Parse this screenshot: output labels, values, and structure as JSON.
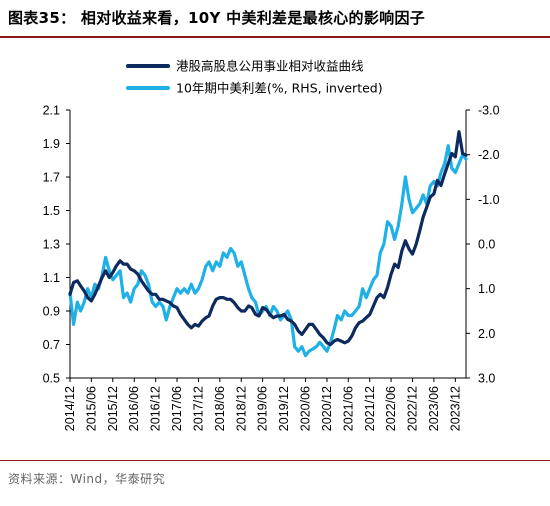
{
  "header": {
    "title": "图表35：  相对收益来看，10Y 中美利差是最核心的影响因子"
  },
  "footer": {
    "source": "资料来源：Wind，华泰研究"
  },
  "chart_data": {
    "type": "line",
    "title": "",
    "xlabel": "",
    "ylabel_left": "",
    "ylabel_right": "",
    "x_tick_labels": [
      "2014/12",
      "2015/06",
      "2015/12",
      "2016/06",
      "2016/12",
      "2017/06",
      "2017/12",
      "2018/06",
      "2018/12",
      "2019/06",
      "2019/12",
      "2020/06",
      "2020/12",
      "2021/06",
      "2021/12",
      "2022/06",
      "2022/12",
      "2023/06",
      "2023/12"
    ],
    "x_range": [
      "2014/12",
      "2024/03"
    ],
    "y_left": {
      "range": [
        0.5,
        2.1
      ],
      "ticks": [
        "0.5",
        "0.7",
        "0.9",
        "1.1",
        "1.3",
        "1.5",
        "1.7",
        "1.9",
        "2.1"
      ]
    },
    "y_right": {
      "range": [
        -3.0,
        3.0
      ],
      "inverted": true,
      "ticks": [
        "-3.0",
        "-2.0",
        "-1.0",
        "0.0",
        "1.0",
        "2.0",
        "3.0"
      ]
    },
    "grid": false,
    "legend_position": "top-center",
    "series": [
      {
        "name": "港股高股息公用事业相对收益曲线",
        "axis": "left",
        "color": "#0c2a5e",
        "points": [
          [
            "2014/12/01",
            1.0
          ],
          [
            "2015/01/01",
            1.07
          ],
          [
            "2015/02/01",
            1.08
          ],
          [
            "2015/03/01",
            1.05
          ],
          [
            "2015/04/01",
            1.02
          ],
          [
            "2015/05/01",
            0.98
          ],
          [
            "2015/06/01",
            0.96
          ],
          [
            "2015/07/01",
            1.0
          ],
          [
            "2015/08/01",
            1.05
          ],
          [
            "2015/09/01",
            1.1
          ],
          [
            "2015/10/01",
            1.14
          ],
          [
            "2015/11/01",
            1.1
          ],
          [
            "2015/12/01",
            1.13
          ],
          [
            "2016/01/01",
            1.17
          ],
          [
            "2016/02/01",
            1.2
          ],
          [
            "2016/03/01",
            1.18
          ],
          [
            "2016/04/01",
            1.18
          ],
          [
            "2016/05/01",
            1.15
          ],
          [
            "2016/06/01",
            1.14
          ],
          [
            "2016/07/01",
            1.12
          ],
          [
            "2016/08/01",
            1.08
          ],
          [
            "2016/09/01",
            1.05
          ],
          [
            "2016/10/01",
            1.02
          ],
          [
            "2016/11/01",
            1.0
          ],
          [
            "2016/12/01",
            1.0
          ],
          [
            "2017/01/01",
            0.97
          ],
          [
            "2017/02/01",
            0.97
          ],
          [
            "2017/03/01",
            0.96
          ],
          [
            "2017/04/01",
            0.95
          ],
          [
            "2017/05/01",
            0.93
          ],
          [
            "2017/06/01",
            0.92
          ],
          [
            "2017/07/01",
            0.88
          ],
          [
            "2017/08/01",
            0.85
          ],
          [
            "2017/09/01",
            0.82
          ],
          [
            "2017/10/01",
            0.8
          ],
          [
            "2017/11/01",
            0.82
          ],
          [
            "2017/12/01",
            0.81
          ],
          [
            "2018/01/01",
            0.84
          ],
          [
            "2018/02/01",
            0.86
          ],
          [
            "2018/03/01",
            0.87
          ],
          [
            "2018/04/01",
            0.93
          ],
          [
            "2018/05/01",
            0.97
          ],
          [
            "2018/06/01",
            0.98
          ],
          [
            "2018/07/01",
            0.98
          ],
          [
            "2018/08/01",
            0.97
          ],
          [
            "2018/09/01",
            0.97
          ],
          [
            "2018/10/01",
            0.95
          ],
          [
            "2018/11/01",
            0.92
          ],
          [
            "2018/12/01",
            0.9
          ],
          [
            "2019/01/01",
            0.9
          ],
          [
            "2019/02/01",
            0.93
          ],
          [
            "2019/03/01",
            0.92
          ],
          [
            "2019/04/01",
            0.88
          ],
          [
            "2019/05/01",
            0.87
          ],
          [
            "2019/06/01",
            0.92
          ],
          [
            "2019/07/01",
            0.91
          ],
          [
            "2019/08/01",
            0.88
          ],
          [
            "2019/09/01",
            0.86
          ],
          [
            "2019/10/01",
            0.87
          ],
          [
            "2019/11/01",
            0.87
          ],
          [
            "2019/12/01",
            0.88
          ],
          [
            "2020/01/01",
            0.85
          ],
          [
            "2020/02/01",
            0.84
          ],
          [
            "2020/03/01",
            0.82
          ],
          [
            "2020/04/01",
            0.78
          ],
          [
            "2020/05/01",
            0.76
          ],
          [
            "2020/06/01",
            0.79
          ],
          [
            "2020/07/01",
            0.82
          ],
          [
            "2020/08/01",
            0.82
          ],
          [
            "2020/09/01",
            0.79
          ],
          [
            "2020/10/01",
            0.76
          ],
          [
            "2020/11/01",
            0.74
          ],
          [
            "2020/12/01",
            0.71
          ],
          [
            "2021/01/01",
            0.7
          ],
          [
            "2021/02/01",
            0.72
          ],
          [
            "2021/03/01",
            0.73
          ],
          [
            "2021/04/01",
            0.72
          ],
          [
            "2021/05/01",
            0.71
          ],
          [
            "2021/06/01",
            0.72
          ],
          [
            "2021/07/01",
            0.75
          ],
          [
            "2021/08/01",
            0.8
          ],
          [
            "2021/09/01",
            0.83
          ],
          [
            "2021/10/01",
            0.84
          ],
          [
            "2021/11/01",
            0.86
          ],
          [
            "2021/12/01",
            0.88
          ],
          [
            "2022/01/01",
            0.93
          ],
          [
            "2022/02/01",
            0.98
          ],
          [
            "2022/03/01",
            1.0
          ],
          [
            "2022/04/01",
            0.98
          ],
          [
            "2022/05/01",
            1.04
          ],
          [
            "2022/06/01",
            1.12
          ],
          [
            "2022/07/01",
            1.18
          ],
          [
            "2022/08/01",
            1.16
          ],
          [
            "2022/09/01",
            1.26
          ],
          [
            "2022/10/01",
            1.32
          ],
          [
            "2022/11/01",
            1.27
          ],
          [
            "2022/12/01",
            1.24
          ],
          [
            "2023/01/01",
            1.3
          ],
          [
            "2023/02/01",
            1.38
          ],
          [
            "2023/03/01",
            1.46
          ],
          [
            "2023/04/01",
            1.52
          ],
          [
            "2023/05/01",
            1.58
          ],
          [
            "2023/06/01",
            1.6
          ],
          [
            "2023/07/01",
            1.68
          ],
          [
            "2023/08/01",
            1.65
          ],
          [
            "2023/09/01",
            1.72
          ],
          [
            "2023/10/01",
            1.78
          ],
          [
            "2023/11/01",
            1.84
          ],
          [
            "2023/12/01",
            1.82
          ],
          [
            "2024/01/01",
            1.97
          ],
          [
            "2024/02/01",
            1.84
          ],
          [
            "2024/03/01",
            1.83
          ]
        ]
      },
      {
        "name": "10年期中美利差(%, RHS, inverted)",
        "axis": "right",
        "color": "#1eb0e6",
        "points": [
          [
            "2014/12/01",
            1.1
          ],
          [
            "2015/01/01",
            1.8
          ],
          [
            "2015/02/01",
            1.3
          ],
          [
            "2015/03/01",
            1.5
          ],
          [
            "2015/04/01",
            1.3
          ],
          [
            "2015/05/01",
            1.0
          ],
          [
            "2015/06/01",
            1.2
          ],
          [
            "2015/07/01",
            0.9
          ],
          [
            "2015/08/01",
            1.0
          ],
          [
            "2015/09/01",
            0.7
          ],
          [
            "2015/10/01",
            0.3
          ],
          [
            "2015/11/01",
            0.6
          ],
          [
            "2015/12/01",
            0.8
          ],
          [
            "2016/01/01",
            0.7
          ],
          [
            "2016/02/01",
            0.6
          ],
          [
            "2016/03/01",
            1.2
          ],
          [
            "2016/04/01",
            1.1
          ],
          [
            "2016/05/01",
            1.3
          ],
          [
            "2016/06/01",
            1.0
          ],
          [
            "2016/07/01",
            0.9
          ],
          [
            "2016/08/01",
            0.6
          ],
          [
            "2016/09/01",
            0.7
          ],
          [
            "2016/10/01",
            0.9
          ],
          [
            "2016/11/01",
            1.3
          ],
          [
            "2016/12/01",
            1.4
          ],
          [
            "2017/01/01",
            1.3
          ],
          [
            "2017/02/01",
            1.4
          ],
          [
            "2017/03/01",
            1.7
          ],
          [
            "2017/04/01",
            1.4
          ],
          [
            "2017/05/01",
            1.2
          ],
          [
            "2017/06/01",
            1.0
          ],
          [
            "2017/07/01",
            1.1
          ],
          [
            "2017/08/01",
            1.0
          ],
          [
            "2017/09/01",
            1.1
          ],
          [
            "2017/10/01",
            0.9
          ],
          [
            "2017/11/01",
            1.1
          ],
          [
            "2017/12/01",
            1.0
          ],
          [
            "2018/01/01",
            0.8
          ],
          [
            "2018/02/01",
            0.5
          ],
          [
            "2018/03/01",
            0.4
          ],
          [
            "2018/04/01",
            0.6
          ],
          [
            "2018/05/01",
            0.4
          ],
          [
            "2018/06/01",
            0.5
          ],
          [
            "2018/07/01",
            0.2
          ],
          [
            "2018/08/01",
            0.3
          ],
          [
            "2018/09/01",
            0.1
          ],
          [
            "2018/10/01",
            0.2
          ],
          [
            "2018/11/01",
            0.5
          ],
          [
            "2018/12/01",
            0.4
          ],
          [
            "2019/01/01",
            0.7
          ],
          [
            "2019/02/01",
            1.0
          ],
          [
            "2019/03/01",
            1.2
          ],
          [
            "2019/04/01",
            1.3
          ],
          [
            "2019/05/01",
            1.6
          ],
          [
            "2019/06/01",
            1.5
          ],
          [
            "2019/07/01",
            1.4
          ],
          [
            "2019/08/01",
            1.6
          ],
          [
            "2019/09/01",
            1.4
          ],
          [
            "2019/10/01",
            1.5
          ],
          [
            "2019/11/01",
            1.7
          ],
          [
            "2019/12/01",
            1.6
          ],
          [
            "2020/01/01",
            1.5
          ],
          [
            "2020/02/01",
            1.7
          ],
          [
            "2020/03/01",
            2.3
          ],
          [
            "2020/04/01",
            2.4
          ],
          [
            "2020/05/01",
            2.3
          ],
          [
            "2020/06/01",
            2.5
          ],
          [
            "2020/07/01",
            2.4
          ],
          [
            "2020/08/01",
            2.35
          ],
          [
            "2020/09/01",
            2.3
          ],
          [
            "2020/10/01",
            2.2
          ],
          [
            "2020/11/01",
            2.3
          ],
          [
            "2020/12/01",
            2.4
          ],
          [
            "2021/01/01",
            2.2
          ],
          [
            "2021/02/01",
            1.9
          ],
          [
            "2021/03/01",
            1.6
          ],
          [
            "2021/04/01",
            1.7
          ],
          [
            "2021/05/01",
            1.5
          ],
          [
            "2021/06/01",
            1.6
          ],
          [
            "2021/07/01",
            1.6
          ],
          [
            "2021/08/01",
            1.5
          ],
          [
            "2021/09/01",
            1.4
          ],
          [
            "2021/10/01",
            1.0
          ],
          [
            "2021/11/01",
            1.2
          ],
          [
            "2021/12/01",
            1.0
          ],
          [
            "2022/01/01",
            0.8
          ],
          [
            "2022/02/01",
            0.7
          ],
          [
            "2022/03/01",
            0.2
          ],
          [
            "2022/04/01",
            0.0
          ],
          [
            "2022/05/01",
            -0.5
          ],
          [
            "2022/06/01",
            -0.4
          ],
          [
            "2022/07/01",
            -0.1
          ],
          [
            "2022/08/01",
            -0.4
          ],
          [
            "2022/09/01",
            -0.9
          ],
          [
            "2022/10/01",
            -1.5
          ],
          [
            "2022/11/01",
            -1.0
          ],
          [
            "2022/12/01",
            -0.7
          ],
          [
            "2023/01/01",
            -0.8
          ],
          [
            "2023/02/01",
            -0.9
          ],
          [
            "2023/03/01",
            -1.1
          ],
          [
            "2023/04/01",
            -0.9
          ],
          [
            "2023/05/01",
            -1.3
          ],
          [
            "2023/06/01",
            -1.4
          ],
          [
            "2023/07/01",
            -1.3
          ],
          [
            "2023/08/01",
            -1.6
          ],
          [
            "2023/09/01",
            -1.8
          ],
          [
            "2023/10/01",
            -2.2
          ],
          [
            "2023/11/01",
            -1.7
          ],
          [
            "2023/12/01",
            -1.6
          ],
          [
            "2024/01/01",
            -1.8
          ],
          [
            "2024/02/01",
            -2.0
          ],
          [
            "2024/03/01",
            -1.9
          ]
        ]
      }
    ]
  }
}
